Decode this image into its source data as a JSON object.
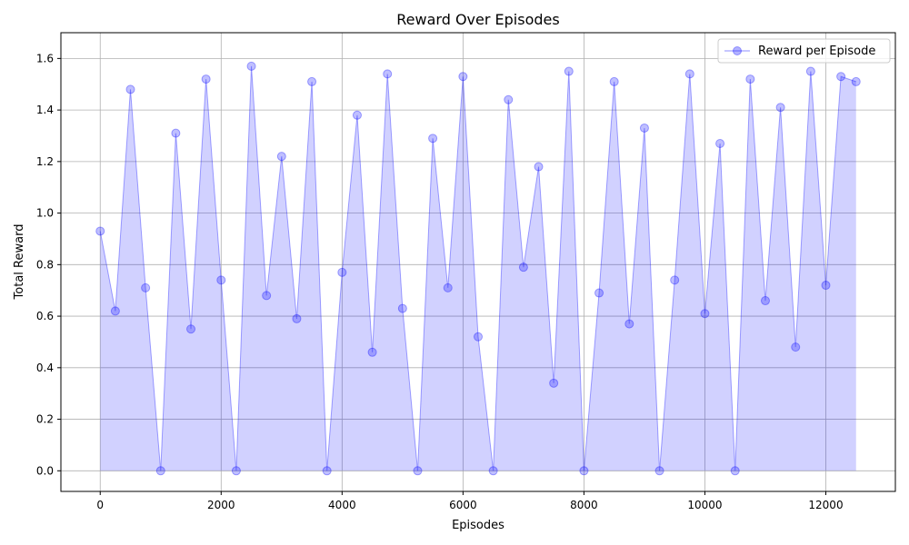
{
  "chart_data": {
    "type": "scatter",
    "title": "Reward Over Episodes",
    "xlabel": "Episodes",
    "ylabel": "Total Reward",
    "xlim": [
      -650,
      13150
    ],
    "ylim": [
      -0.08,
      1.7
    ],
    "x_ticks": [
      0,
      2000,
      4000,
      6000,
      8000,
      10000,
      12000
    ],
    "x_tick_labels": [
      "0",
      "2000",
      "4000",
      "6000",
      "8000",
      "10000",
      "12000"
    ],
    "y_ticks": [
      0.0,
      0.2,
      0.4,
      0.6,
      0.8,
      1.0,
      1.2,
      1.4,
      1.6
    ],
    "y_tick_labels": [
      "0.0",
      "0.2",
      "0.4",
      "0.6",
      "0.8",
      "1.0",
      "1.2",
      "1.4",
      "1.6"
    ],
    "grid": true,
    "legend_position": "top-right",
    "series": [
      {
        "name": "Reward per Episode",
        "color": "#0000ff",
        "marker": "circle",
        "line": true,
        "alpha": 0.25,
        "x": [
          0,
          250,
          500,
          750,
          1000,
          1250,
          1500,
          1750,
          2000,
          2250,
          2500,
          2750,
          3000,
          3250,
          3500,
          3750,
          4000,
          4250,
          4500,
          4750,
          5000,
          5250,
          5500,
          5750,
          6000,
          6250,
          6500,
          6750,
          7000,
          7250,
          7500,
          7750,
          8000,
          8250,
          8500,
          8750,
          9000,
          9250,
          9500,
          9750,
          10000,
          10250,
          10500,
          10750,
          11000,
          11250,
          11500,
          11750,
          12000,
          12250,
          12500
        ],
        "y": [
          0.93,
          0.62,
          1.48,
          0.71,
          0.0,
          1.31,
          0.55,
          1.52,
          0.74,
          0.0,
          1.57,
          0.68,
          1.22,
          0.59,
          1.51,
          0.0,
          0.77,
          1.38,
          0.46,
          1.54,
          0.63,
          0.0,
          1.29,
          0.71,
          1.53,
          0.52,
          0.0,
          1.44,
          0.79,
          1.18,
          0.34,
          1.55,
          0.0,
          0.69,
          1.51,
          0.57,
          1.33,
          0.0,
          0.74,
          1.54,
          0.61,
          1.27,
          0.0,
          1.52,
          0.66,
          1.41,
          0.48,
          1.55,
          0.72,
          1.53,
          1.51
        ]
      }
    ]
  }
}
